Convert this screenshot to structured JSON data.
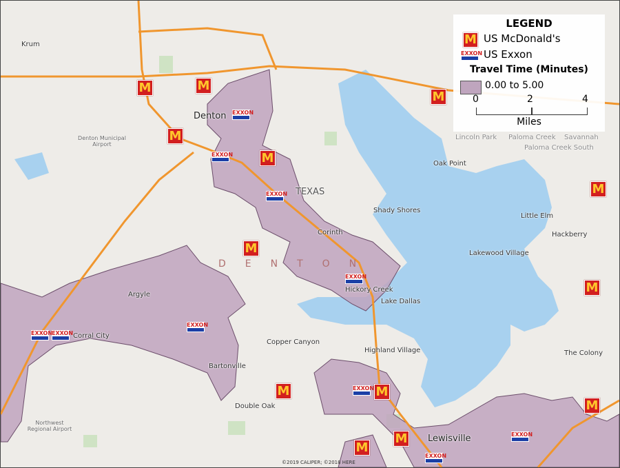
{
  "legend": {
    "title": "LEGEND",
    "items": [
      {
        "label": "US McDonald's",
        "icon": "mcdonalds-logo-icon"
      },
      {
        "label": "US Exxon",
        "icon": "exxon-logo-icon"
      }
    ],
    "travel_time_title": "Travel Time (Minutes)",
    "range_label": "0.00 to 5.00",
    "range_color": "#bfa5be",
    "scale_ticks": [
      "0",
      "2",
      "4"
    ],
    "scale_unit": "Miles"
  },
  "places": {
    "krum": "Krum",
    "denton": "Denton",
    "texas": "TEXAS",
    "oak_point": "Oak Point",
    "shady_shores": "Shady Shores",
    "little_elm": "Little Elm",
    "hackberry": "Hackberry",
    "lakewood_village": "Lakewood Village",
    "corinth": "Corinth",
    "argyle": "Argyle",
    "hickory_creek": "Hickory Creek",
    "lake_dallas": "Lake Dallas",
    "copper_canyon": "Copper Canyon",
    "highland_village": "Highland Village",
    "the_colony": "The Colony",
    "bartonville": "Bartonville",
    "double_oak": "Double Oak",
    "lewisville": "Lewisville",
    "corral_city": "Corral City",
    "denton_airport": "Denton Municipal Airport",
    "northwest_airport": "Northwest Regional Airport",
    "county": "DENTON",
    "lincoln_park": "Lincoln Park",
    "paloma_creek": "Paloma Creek",
    "savannah": "Savannah",
    "paloma_creek_south": "Paloma Creek South"
  },
  "mcdonalds_glyph": "M",
  "exxon_text": "EXXON",
  "copyright": "©2019 CALIPER; ©2018 HERE",
  "colors": {
    "water": "#a8d1ef",
    "isochrone": "#bfa5be",
    "highway": "#f0962e",
    "mcdonalds": "#d21f1f",
    "exxon_blue": "#1b3fa6"
  }
}
